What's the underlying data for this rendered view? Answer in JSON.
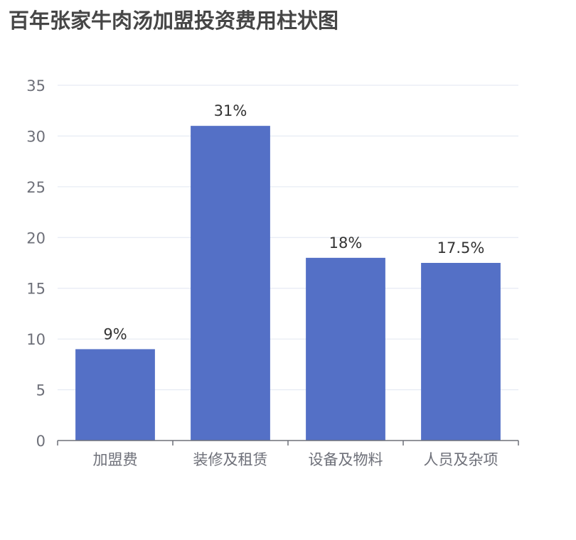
{
  "chart_data": {
    "type": "bar",
    "title": "百年张家牛肉汤加盟投资费用柱状图",
    "categories": [
      "加盟费",
      "装修及租赁",
      "设备及物料",
      "人员及杂项"
    ],
    "values": [
      9,
      31,
      18,
      17.5
    ],
    "data_labels": [
      "9%",
      "31%",
      "18%",
      "17.5%"
    ],
    "ylim": [
      0,
      35
    ],
    "yticks": [
      "0",
      "5",
      "10",
      "15",
      "20",
      "25",
      "30",
      "35"
    ],
    "xlabel": "",
    "ylabel": "",
    "grid": true,
    "legend": "none"
  },
  "colors": {
    "bar": "#5470c6",
    "grid": "#e0e6f1",
    "axis": "#6e7079",
    "tick_text": "#6e7079",
    "label_text": "#333333",
    "title": "#464646"
  }
}
